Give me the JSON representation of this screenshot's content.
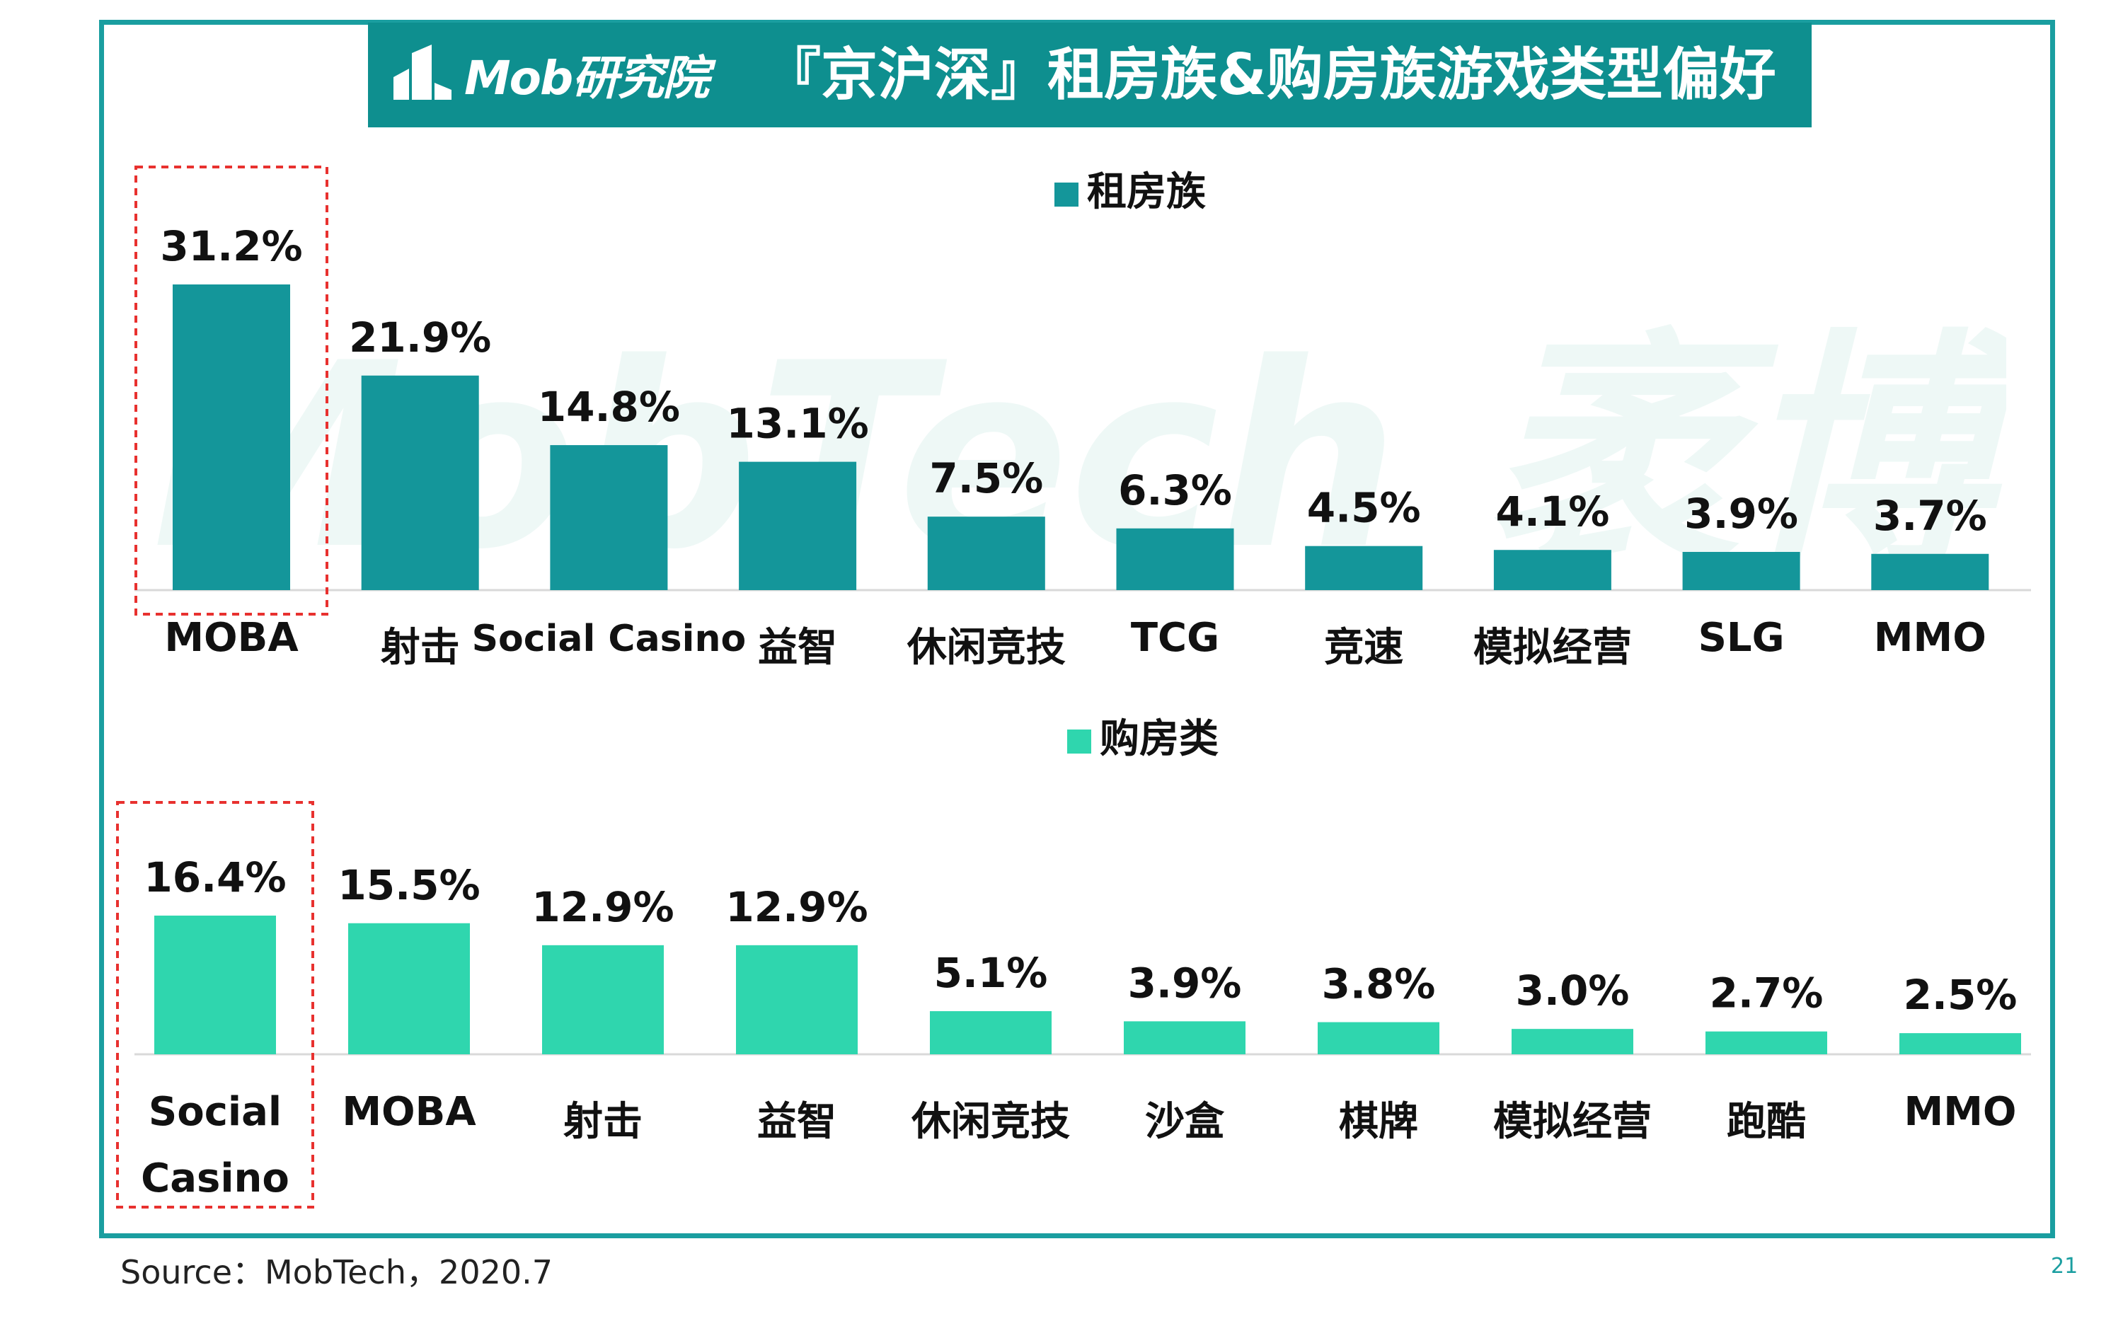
{
  "header": {
    "brand": "Mob研究院",
    "title": "『京沪深』租房族&购房族游戏类型偏好"
  },
  "watermark": {
    "text": "MobTech 袤博"
  },
  "colors": {
    "frame": "#1a9ea0",
    "banner": "#0e8f8f",
    "series_rent": "#14969a",
    "series_buy": "#2fd6ae",
    "highlight_box": "#e8312f"
  },
  "chart_data": [
    {
      "type": "bar",
      "legend": "租房族",
      "legend_position": "top-center",
      "categories": [
        "MOBA",
        "射击",
        "Social Casino",
        "益智",
        "休闲竞技",
        "TCG",
        "竞速",
        "模拟经营",
        "SLG",
        "MMO"
      ],
      "values": [
        31.2,
        21.9,
        14.8,
        13.1,
        7.5,
        6.3,
        4.5,
        4.1,
        3.9,
        3.7
      ],
      "value_labels": [
        "31.2%",
        "21.9%",
        "14.8%",
        "13.1%",
        "7.5%",
        "6.3%",
        "4.5%",
        "4.1%",
        "3.9%",
        "3.7%"
      ],
      "highlighted_category": "MOBA",
      "ylim": [
        0,
        31.2
      ]
    },
    {
      "type": "bar",
      "legend": "购房类",
      "legend_position": "top-center",
      "categories": [
        "Social Casino",
        "MOBA",
        "射击",
        "益智",
        "休闲竞技",
        "沙盒",
        "棋牌",
        "模拟经营",
        "跑酷",
        "MMO"
      ],
      "values": [
        16.4,
        15.5,
        12.9,
        12.9,
        5.1,
        3.9,
        3.8,
        3.0,
        2.7,
        2.5
      ],
      "value_labels": [
        "16.4%",
        "15.5%",
        "12.9%",
        "12.9%",
        "5.1%",
        "3.9%",
        "3.8%",
        "3.0%",
        "2.7%",
        "2.5%"
      ],
      "highlighted_category": "Social Casino",
      "ylim": [
        0,
        16.4
      ]
    }
  ],
  "footer": {
    "source": "Source：MobTech，2020.7",
    "page_number": "21"
  }
}
